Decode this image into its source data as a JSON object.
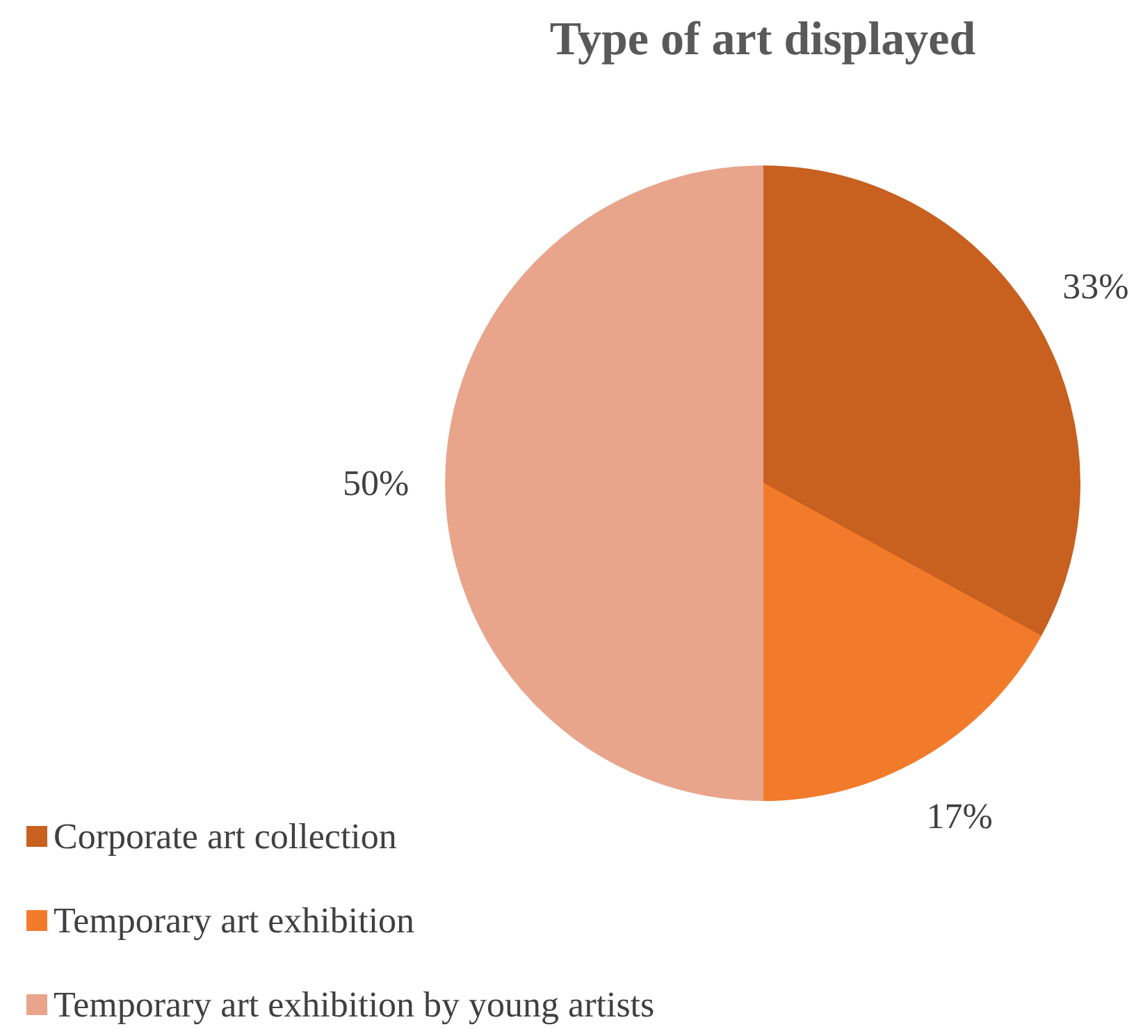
{
  "chart_data": {
    "type": "pie",
    "title": "Type of art displayed",
    "categories": [
      "Corporate art collection",
      "Temporary art exhibition",
      "Temporary art exhibition by young artists"
    ],
    "values": [
      33,
      17,
      50
    ],
    "colors": [
      "#c8601f",
      "#f27b2b",
      "#e8a58c"
    ],
    "value_labels": [
      "33%",
      "17%",
      "50%"
    ],
    "legend": "bottom left"
  }
}
